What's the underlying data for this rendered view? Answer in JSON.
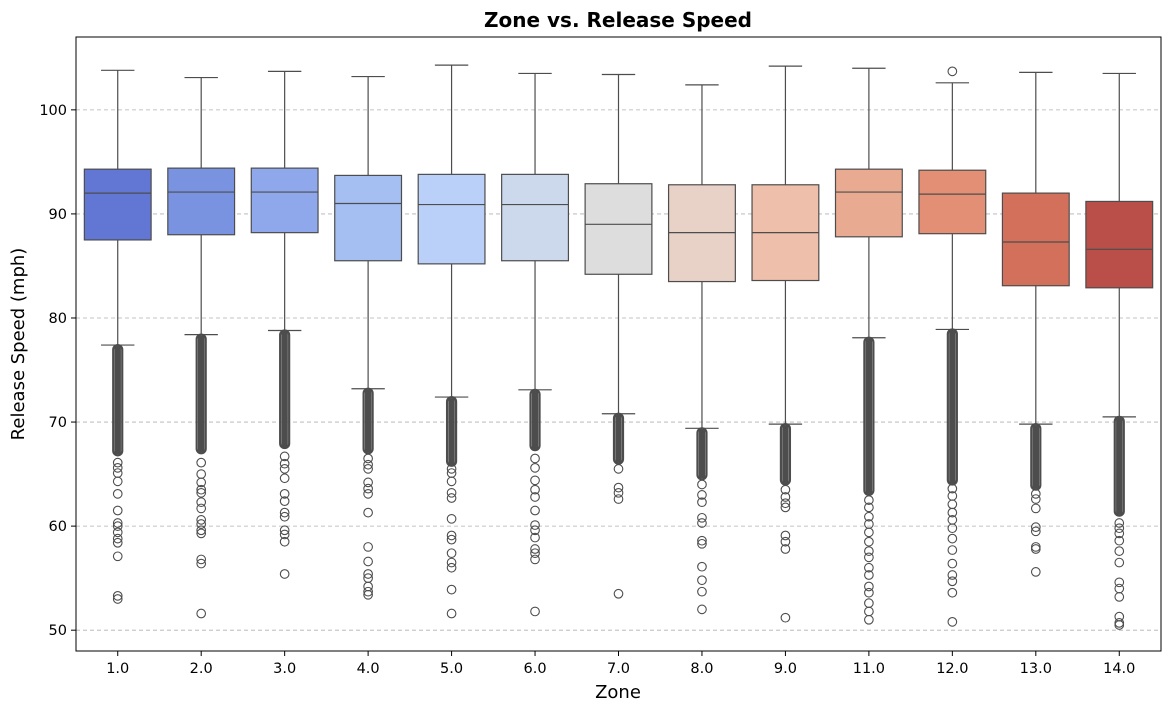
{
  "chart_data": {
    "type": "box",
    "title": "Zone vs. Release Speed",
    "xlabel": "Zone",
    "ylabel": "Release Speed (mph)",
    "ylim": [
      48,
      107
    ],
    "yticks": [
      50,
      60,
      70,
      80,
      90,
      100
    ],
    "grid": "y-dashed",
    "legend": "none",
    "median_color": "#4d4d4d",
    "outlier_color": "#4d4d4d",
    "categories": [
      "1.0",
      "2.0",
      "3.0",
      "4.0",
      "5.0",
      "6.0",
      "7.0",
      "8.0",
      "9.0",
      "11.0",
      "12.0",
      "13.0",
      "14.0"
    ],
    "boxes": [
      {
        "zone": "1.0",
        "whisker_low": 77.4,
        "q1": 87.5,
        "median": 92.0,
        "q3": 94.3,
        "whisker_high": 103.8,
        "color": "#6277d3",
        "outlier_band": [
          66.8,
          77.4
        ],
        "outliers": [
          53.0,
          53.3,
          57.1,
          58.4,
          58.8,
          59.4,
          60.0,
          60.3,
          61.5,
          63.1,
          64.3,
          65.1,
          65.6,
          66.1
        ]
      },
      {
        "zone": "2.0",
        "whisker_low": 78.4,
        "q1": 88.0,
        "median": 92.1,
        "q3": 94.4,
        "whisker_high": 103.1,
        "color": "#7a93e1",
        "outlier_band": [
          67.0,
          78.4
        ],
        "outliers": [
          51.6,
          56.4,
          56.8,
          59.3,
          59.6,
          60.2,
          60.6,
          61.7,
          62.3,
          63.2,
          63.5,
          64.2,
          65.0,
          66.1
        ]
      },
      {
        "zone": "3.0",
        "whisker_low": 78.8,
        "q1": 88.2,
        "median": 92.1,
        "q3": 94.4,
        "whisker_high": 103.7,
        "color": "#8fa8ec",
        "outlier_band": [
          67.5,
          78.8
        ],
        "outliers": [
          55.4,
          58.5,
          59.2,
          59.6,
          60.9,
          61.3,
          62.4,
          63.1,
          64.6,
          65.5,
          66.0,
          66.7
        ]
      },
      {
        "zone": "4.0",
        "whisker_low": 73.2,
        "q1": 85.5,
        "median": 91.0,
        "q3": 93.7,
        "whisker_high": 103.2,
        "color": "#a5bff3",
        "outlier_band": [
          67.0,
          73.2
        ],
        "outliers": [
          53.4,
          53.7,
          54.2,
          55.0,
          55.4,
          56.6,
          58.0,
          61.3,
          63.1,
          63.6,
          64.2,
          65.5,
          65.9,
          66.5
        ]
      },
      {
        "zone": "5.0",
        "whisker_low": 72.4,
        "q1": 85.2,
        "median": 90.9,
        "q3": 93.8,
        "whisker_high": 104.3,
        "color": "#bad0f8",
        "outlier_band": [
          65.8,
          72.4
        ],
        "outliers": [
          51.6,
          53.9,
          56.0,
          56.5,
          57.4,
          58.7,
          59.1,
          60.7,
          62.7,
          63.2,
          64.3,
          65.1,
          65.5
        ]
      },
      {
        "zone": "6.0",
        "whisker_low": 73.1,
        "q1": 85.5,
        "median": 90.9,
        "q3": 93.8,
        "whisker_high": 103.5,
        "color": "#ccd9ed",
        "outlier_band": [
          67.3,
          73.1
        ],
        "outliers": [
          51.8,
          56.8,
          57.4,
          57.8,
          58.9,
          59.6,
          60.1,
          61.5,
          62.8,
          63.5,
          64.4,
          65.6,
          66.5
        ]
      },
      {
        "zone": "7.0",
        "whisker_low": 70.8,
        "q1": 84.2,
        "median": 89.0,
        "q3": 92.9,
        "whisker_high": 103.4,
        "color": "#dddddd",
        "outlier_band": [
          66.0,
          70.8
        ],
        "outliers": [
          53.5,
          62.6,
          63.2,
          63.7,
          65.5
        ]
      },
      {
        "zone": "8.0",
        "whisker_low": 69.4,
        "q1": 83.5,
        "median": 88.2,
        "q3": 92.8,
        "whisker_high": 102.4,
        "color": "#e8d1c6",
        "outlier_band": [
          64.5,
          69.4
        ],
        "outliers": [
          52.0,
          53.7,
          54.8,
          56.1,
          58.3,
          58.6,
          60.3,
          60.8,
          62.3,
          63.0,
          64.0
        ]
      },
      {
        "zone": "9.0",
        "whisker_low": 69.8,
        "q1": 83.6,
        "median": 88.2,
        "q3": 92.8,
        "whisker_high": 104.2,
        "color": "#eebfaa",
        "outlier_band": [
          64.0,
          69.8
        ],
        "outliers": [
          51.2,
          57.8,
          58.5,
          59.1,
          61.8,
          62.2,
          62.8,
          63.5
        ]
      },
      {
        "zone": "11.0",
        "whisker_low": 78.1,
        "q1": 87.8,
        "median": 92.1,
        "q3": 94.3,
        "whisker_high": 104.0,
        "color": "#e9aa92",
        "outlier_band": [
          63.0,
          78.1
        ],
        "outliers": [
          51.0,
          51.8,
          52.6,
          53.6,
          54.2,
          55.3,
          56.0,
          57.0,
          57.6,
          58.5,
          59.4,
          60.2,
          60.9,
          61.8,
          62.5
        ]
      },
      {
        "zone": "12.0",
        "whisker_low": 78.9,
        "q1": 88.1,
        "median": 91.9,
        "q3": 94.2,
        "whisker_high": 102.6,
        "color": "#e28f76",
        "outlier_band": [
          64.0,
          78.9
        ],
        "outliers": [
          50.8,
          53.6,
          54.7,
          55.3,
          56.4,
          57.7,
          58.8,
          59.8,
          60.6,
          61.3,
          62.1,
          62.9,
          63.6,
          103.7
        ]
      },
      {
        "zone": "13.0",
        "whisker_low": 69.8,
        "q1": 83.1,
        "median": 87.3,
        "q3": 92.0,
        "whisker_high": 103.6,
        "color": "#d3705c",
        "outlier_band": [
          63.5,
          69.8
        ],
        "outliers": [
          55.6,
          57.8,
          58.0,
          59.5,
          59.9,
          61.7,
          62.6,
          63.1
        ]
      },
      {
        "zone": "14.0",
        "whisker_low": 70.5,
        "q1": 82.9,
        "median": 86.6,
        "q3": 91.2,
        "whisker_high": 103.5,
        "color": "#ba4e48",
        "outlier_band": [
          61.0,
          70.5
        ],
        "outliers": [
          50.5,
          50.7,
          51.3,
          53.2,
          54.0,
          54.6,
          56.5,
          57.6,
          58.6,
          59.3,
          59.8,
          60.3
        ]
      }
    ]
  }
}
